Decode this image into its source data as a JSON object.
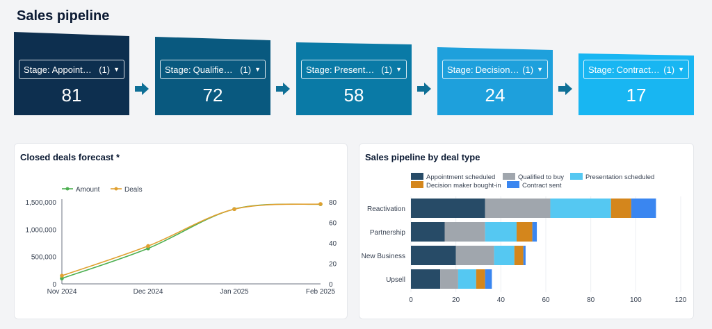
{
  "page": {
    "title": "Sales pipeline"
  },
  "stages": [
    {
      "label": "Stage:",
      "value": "Appointm...",
      "count": "(1)",
      "total": "81",
      "color": "#0d2f4f"
    },
    {
      "label": "Stage:",
      "value": "Qualified t...",
      "count": "(1)",
      "total": "72",
      "color": "#09597f"
    },
    {
      "label": "Stage:",
      "value": "Presentati...",
      "count": "(1)",
      "total": "58",
      "color": "#0a7aa6"
    },
    {
      "label": "Stage:",
      "value": "Decision ...",
      "count": "(1)",
      "total": "24",
      "color": "#1ea0dc"
    },
    {
      "label": "Stage:",
      "value": "Contract s...",
      "count": "(1)",
      "total": "17",
      "color": "#18b6f2"
    }
  ],
  "forecast": {
    "title": "Closed deals forecast *",
    "chart_data": {
      "type": "line",
      "x": [
        "Nov 2024",
        "Dec 2024",
        "Jan 2025",
        "Feb 2025"
      ],
      "series": [
        {
          "name": "Amount",
          "axis": "left",
          "color": "#4caf50",
          "values": [
            100000,
            650000,
            1370000,
            1460000
          ]
        },
        {
          "name": "Deals",
          "axis": "right",
          "color": "#e0a030",
          "values": [
            8,
            37,
            73,
            78
          ]
        }
      ],
      "y_left": {
        "ticks": [
          "0",
          "500,000",
          "1,000,000",
          "1,500,000"
        ],
        "range": [
          0,
          1500000
        ]
      },
      "y_right": {
        "ticks": [
          "0",
          "20",
          "40",
          "60",
          "80"
        ],
        "range": [
          0,
          80
        ]
      },
      "legend": "top-left"
    }
  },
  "deal_type": {
    "title": "Sales pipeline by deal type",
    "chart_data": {
      "type": "bar",
      "orientation": "horizontal",
      "stacked": true,
      "categories": [
        "Reactivation",
        "Partnership",
        "New Business",
        "Upsell"
      ],
      "series": [
        {
          "name": "Appointment scheduled",
          "color": "#274b67",
          "values": [
            33,
            15,
            20,
            13
          ]
        },
        {
          "name": "Qualified to buy",
          "color": "#a0a6ad",
          "values": [
            29,
            18,
            17,
            8
          ]
        },
        {
          "name": "Presentation scheduled",
          "color": "#55c8f2",
          "values": [
            27,
            14,
            9,
            8
          ]
        },
        {
          "name": "Decision maker bought-in",
          "color": "#d4861c",
          "values": [
            9,
            7,
            4,
            4
          ]
        },
        {
          "name": "Contract sent",
          "color": "#3a86f0",
          "values": [
            11,
            2,
            1,
            3
          ]
        }
      ],
      "x_ticks": [
        "0",
        "20",
        "40",
        "60",
        "80",
        "100",
        "120"
      ],
      "xlim": [
        0,
        120
      ],
      "legend": "top"
    }
  }
}
